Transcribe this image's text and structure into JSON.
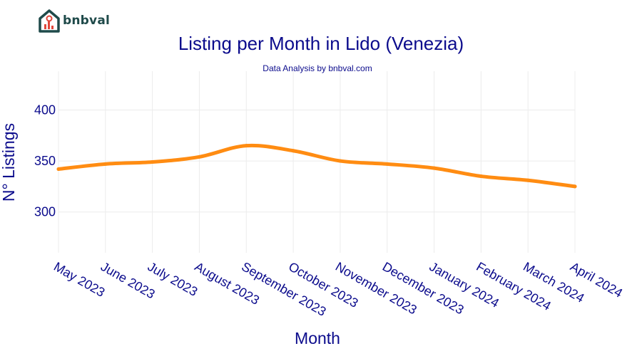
{
  "brand": {
    "name": "bnbval"
  },
  "colors": {
    "line": "#ff8c12",
    "text": "#0b0b8c",
    "grid": "#ececec",
    "logo": "#1f4a4a",
    "logo_accent": "#e0463a"
  },
  "chart_data": {
    "type": "line",
    "title": "Listing per Month in Lido (Venezia)",
    "subtitle": "Data Analysis by bnbval.com",
    "xlabel": "Month",
    "ylabel": "N° Listings",
    "categories": [
      "May 2023",
      "June 2023",
      "July 2023",
      "August 2023",
      "September 2023",
      "October 2023",
      "November 2023",
      "December 2023",
      "January 2024",
      "February 2024",
      "March 2024",
      "April 2024"
    ],
    "series": [
      {
        "name": "Listings",
        "values": [
          342,
          347,
          349,
          354,
          365,
          360,
          350,
          347,
          343,
          335,
          331,
          325
        ]
      }
    ],
    "yticks": [
      300,
      350,
      400
    ],
    "ylim": [
      260,
      438
    ],
    "grid": true,
    "legend": "none"
  }
}
